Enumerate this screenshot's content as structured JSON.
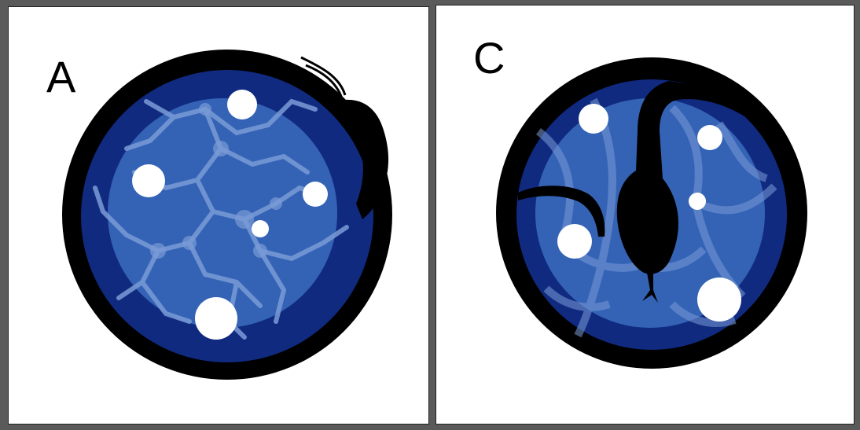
{
  "panels": [
    {
      "id": "A",
      "label": "A"
    },
    {
      "id": "C",
      "label": "C"
    }
  ],
  "colors": {
    "background": "#5a5a5a",
    "panel": "#ffffff",
    "rim": "#000000",
    "outer_blue": "#102a80",
    "inner_blue": "#3463b6",
    "pattern": "#7a9bd6",
    "colony": "#ffffff",
    "organism": "#000000"
  },
  "icons": [
    "petri-dish-icon",
    "snake-icon",
    "colony-icon",
    "mycelium-network-icon"
  ]
}
